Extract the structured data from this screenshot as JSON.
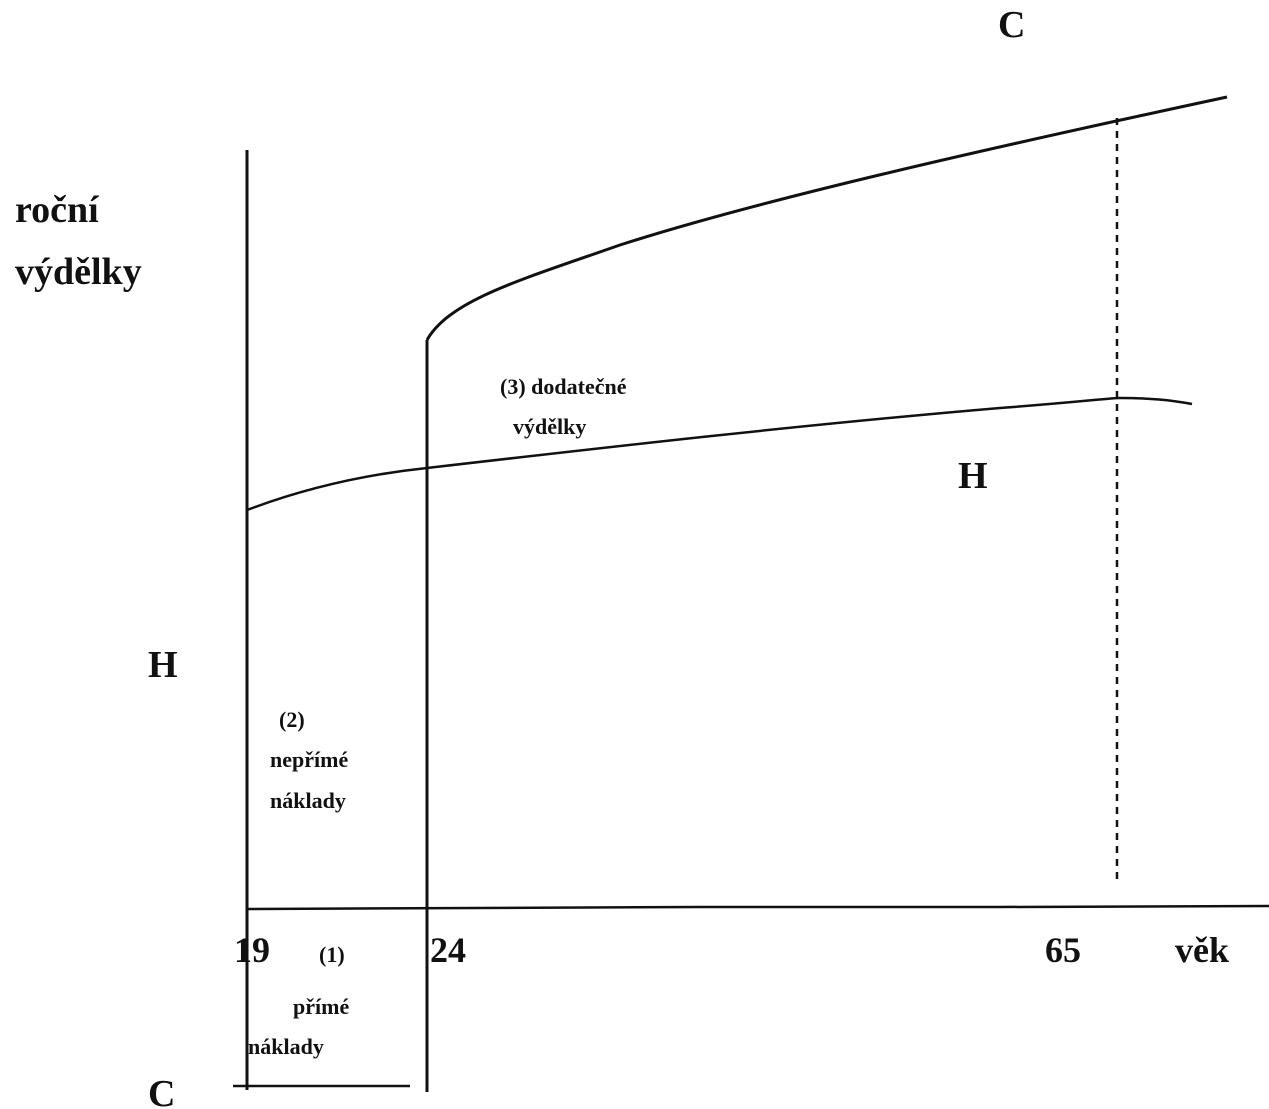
{
  "diagram": {
    "y_axis_label_line1": "roční",
    "y_axis_label_line2": "výdělky",
    "x_axis_label": "věk",
    "curve_college_label": "C",
    "curve_highschool_label": "H",
    "legend_h_label": "H",
    "legend_c_label": "C",
    "ticks": [
      "19",
      "24",
      "65"
    ],
    "region_direct_costs": {
      "number": "(1)",
      "line1": "přímé",
      "line2": "náklady"
    },
    "region_indirect_costs": {
      "number": "(2)",
      "line1": "nepřímé",
      "line2": "náklady"
    },
    "region_additional_earnings": {
      "line1": "(3) dodatečné",
      "line2": "výdělky"
    }
  }
}
